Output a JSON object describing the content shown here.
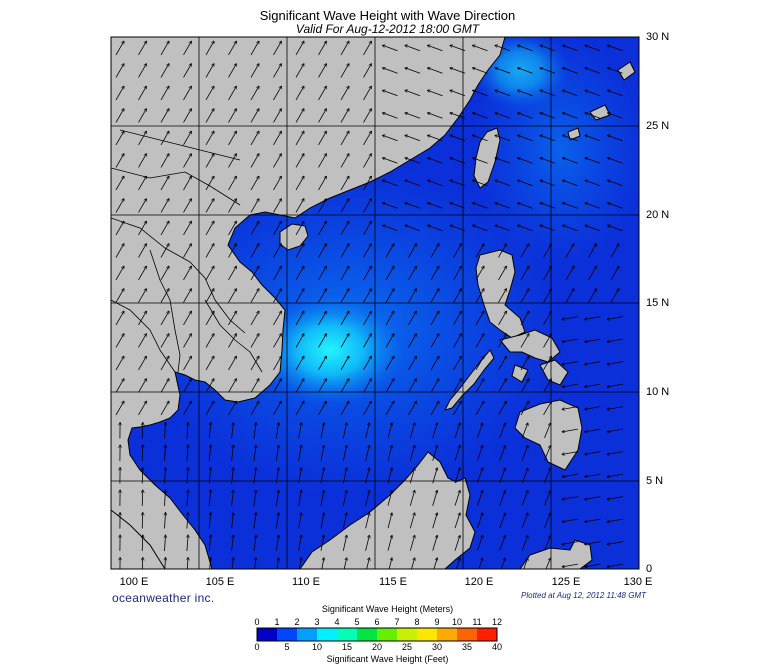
{
  "title": "Significant Wave Height with Wave Direction",
  "subtitle": "Valid For Aug-12-2012 18:00 GMT",
  "lat_labels": [
    "30 N",
    "25 N",
    "20 N",
    "15 N",
    "10 N",
    "5 N",
    "0"
  ],
  "lon_labels": [
    "100 E",
    "105 E",
    "110 E",
    "115 E",
    "120 E",
    "125 E",
    "130 E"
  ],
  "brand": "oceanweather inc.",
  "plotted": "Plotted at Aug 12, 2012 11:48 GMT",
  "legend": {
    "meters_title": "Significant Wave Height (Meters)",
    "feet_title": "Significant Wave Height (Feet)",
    "meters_ticks": [
      "0",
      "1",
      "2",
      "3",
      "4",
      "5",
      "6",
      "7",
      "8",
      "9",
      "10",
      "11",
      "12"
    ],
    "feet_ticks": [
      "0",
      "5",
      "10",
      "15",
      "20",
      "25",
      "30",
      "35",
      "40"
    ],
    "colors": [
      "#0000c8",
      "#0046ff",
      "#00a0ff",
      "#00f0ff",
      "#00ffb4",
      "#00e640",
      "#64f000",
      "#c8f000",
      "#ffe600",
      "#ffaa00",
      "#ff6400",
      "#ff1e00"
    ]
  },
  "colors": {
    "land": "#c0c0c0",
    "coast": "#000000",
    "ocean_low": "#0b2fd9",
    "ocean_mid": "#0a6cf0",
    "ocean_high": "#18e4f8"
  }
}
